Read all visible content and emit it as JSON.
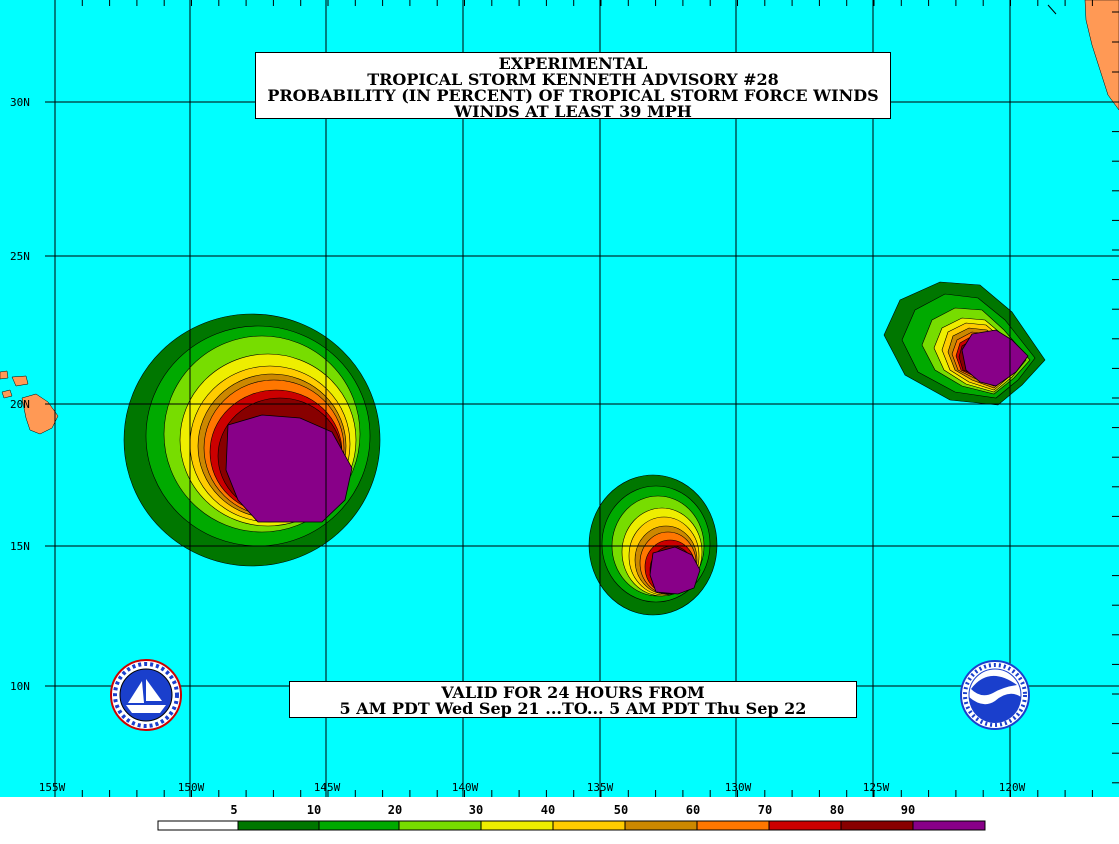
{
  "title": {
    "line1": "EXPERIMENTAL",
    "line2": "TROPICAL STORM KENNETH ADVISORY #28",
    "line3": "PROBABILITY (IN PERCENT) OF TROPICAL STORM FORCE WINDS",
    "line4": "WINDS AT LEAST 39 MPH"
  },
  "valid": {
    "line1": "VALID FOR 24 HOURS FROM",
    "line2": "5 AM PDT Wed Sep 21 ...TO... 5 AM PDT Thu Sep 22"
  },
  "lat_labels": [
    "30N",
    "25N",
    "20N",
    "15N",
    "10N"
  ],
  "lon_labels": [
    "155W",
    "150W",
    "145W",
    "140W",
    "135W",
    "130W",
    "125W",
    "120W"
  ],
  "legend": {
    "labels": [
      "5",
      "10",
      "20",
      "30",
      "40",
      "50",
      "60",
      "70",
      "80",
      "90"
    ],
    "colors": [
      "#ffffff",
      "#007700",
      "#00aa00",
      "#77dd00",
      "#eeee00",
      "#ffcc00",
      "#cc8800",
      "#ff7700",
      "#cc0000",
      "#880000",
      "#880088"
    ]
  },
  "colors": {
    "ocean": "#00ffff",
    "land": "#ff9955",
    "grid": "#000000"
  },
  "logos": {
    "left": "nws-logo",
    "right": "noaa-logo"
  }
}
